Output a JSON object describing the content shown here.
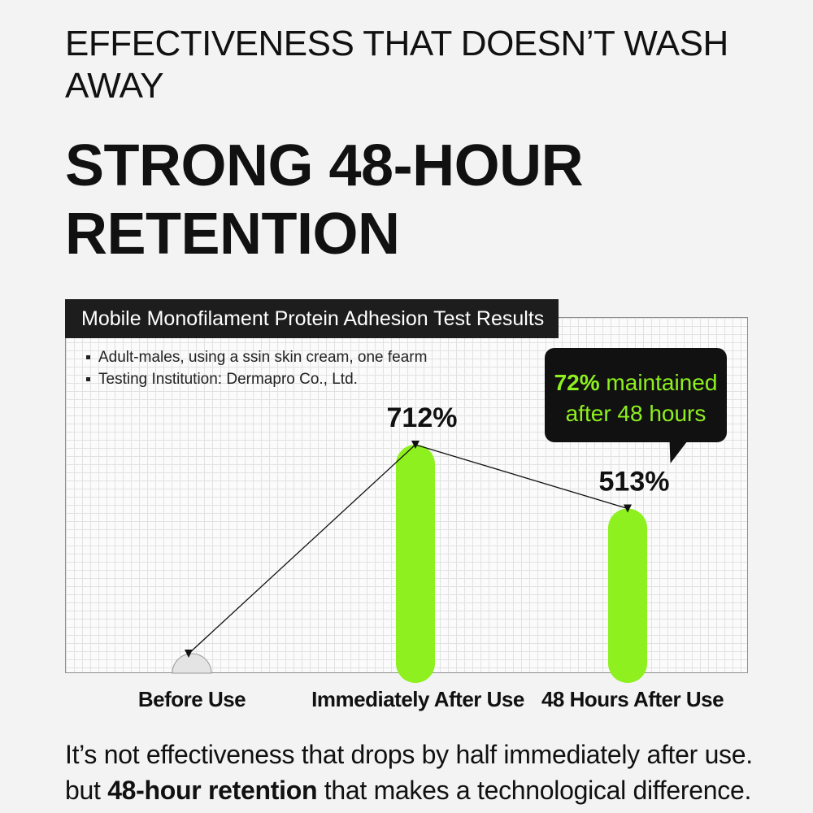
{
  "header": {
    "subtitle": "EFFECTIVENESS THAT DOESN’T WASH AWAY",
    "title": "STRONG 48-HOUR RETENTION"
  },
  "chart_panel": {
    "title": "Mobile Monofilament Protein Adhesion Test Results",
    "notes": [
      "Adult-males, using a ssin skin cream, one fearm",
      "Testing Institution: Dermapro Co., Ltd."
    ],
    "callout": {
      "highlight": "72%",
      "line1_rest": " maintained",
      "line2": "after 48 hours"
    }
  },
  "colors": {
    "bar": "#8ef01e",
    "callout_bg": "#111111",
    "callout_text": "#8ef01e"
  },
  "chart_data": {
    "type": "bar",
    "categories": [
      "Before Use",
      "Immediately After Use",
      "48 Hours After Use"
    ],
    "values": [
      0,
      712,
      513
    ],
    "value_labels": [
      "",
      "712%",
      "513%"
    ],
    "unit": "%",
    "ylim": [
      0,
      760
    ],
    "grid": true,
    "connecting_line": true
  },
  "footer": {
    "line1": "It’s not effectiveness that drops by half immediately after use.",
    "line2_prefix": "but ",
    "line2_bold": "48-hour retention",
    "line2_suffix": " that makes a technological difference."
  }
}
